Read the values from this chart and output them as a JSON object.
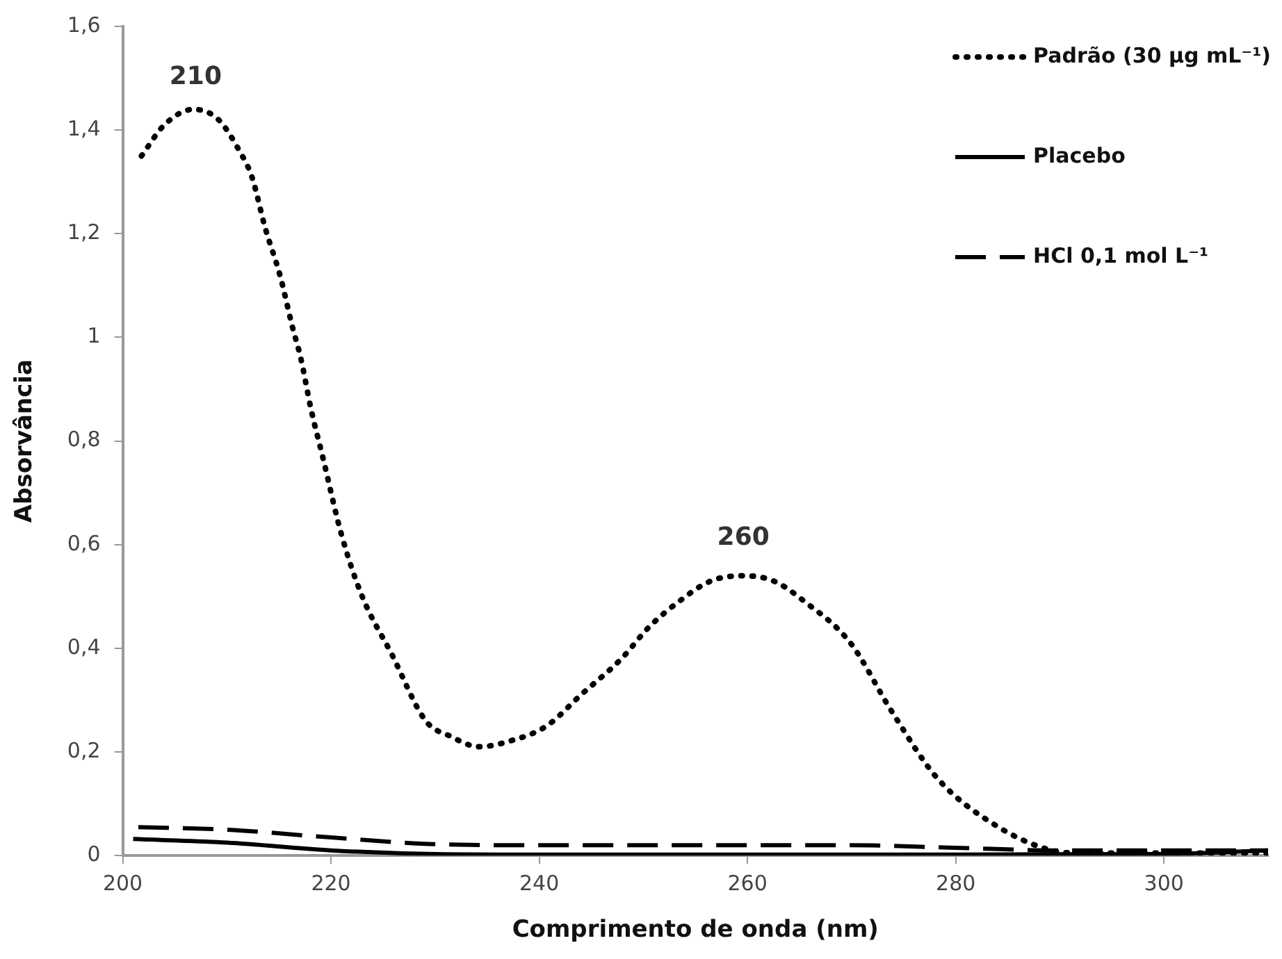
{
  "chart_data": {
    "type": "line",
    "xlabel": "Comprimento de onda (nm)",
    "ylabel": "Absorvância",
    "xlim": [
      200,
      310
    ],
    "xticks": [
      200,
      220,
      240,
      260,
      280,
      300
    ],
    "ylim": [
      0,
      1.6
    ],
    "yticks": [
      0,
      {
        "value": 0.2,
        "label": "0,2"
      },
      {
        "value": 0.4,
        "label": "0,4"
      },
      {
        "value": 0.6,
        "label": "0,6"
      },
      {
        "value": 0.8,
        "label": "0,8"
      },
      1,
      {
        "value": 1.2,
        "label": "1,2"
      },
      {
        "value": 1.4,
        "label": "1,4"
      },
      {
        "value": 1.6,
        "label": "1,6"
      }
    ],
    "grid": false,
    "legend": "top right",
    "marker": "none",
    "annotations": [
      {
        "text": "210",
        "x": 207,
        "y": 1.44
      },
      {
        "text": "260",
        "x": 259.6,
        "y": 0.55
      }
    ],
    "series": [
      {
        "name": "Padrão (30 µg mL⁻¹)",
        "color": "#000000",
        "line_style": "dotted",
        "x": [
          201.8,
          204,
          206.8,
          209.2,
          211.2,
          212.4,
          213.7,
          215.1,
          216.3,
          217.1,
          218.1,
          219.2,
          221,
          223,
          225.8,
          229.1,
          231.5,
          234.2,
          237,
          240.7,
          244,
          247.9,
          250.5,
          253.4,
          256.5,
          259.6,
          262.5,
          265.5,
          269.9,
          273.8,
          278.2,
          283.7,
          289.2,
          292,
          300,
          310
        ],
        "values": [
          1.35,
          1.41,
          1.44,
          1.42,
          1.36,
          1.31,
          1.21,
          1.12,
          1.02,
          0.96,
          0.86,
          0.77,
          0.62,
          0.5,
          0.39,
          0.26,
          0.23,
          0.21,
          0.22,
          0.25,
          0.31,
          0.38,
          0.44,
          0.49,
          0.53,
          0.54,
          0.53,
          0.49,
          0.41,
          0.28,
          0.15,
          0.06,
          0.01,
          0.005,
          0.005,
          0.005
        ]
      },
      {
        "name": "Placebo",
        "color": "#000000",
        "line_style": "solid",
        "x": [
          201,
          210,
          220,
          230,
          240,
          260,
          280,
          300,
          310
        ],
        "values": [
          0.032,
          0.025,
          0.01,
          0.003,
          0.002,
          0.002,
          0.002,
          0.003,
          0.01
        ]
      },
      {
        "name": "HCl 0,1 mol L⁻¹",
        "color": "#000000",
        "line_style": "dashed",
        "x": [
          201.5,
          210,
          220,
          230,
          240,
          270,
          280,
          290,
          310
        ],
        "values": [
          0.055,
          0.05,
          0.035,
          0.022,
          0.02,
          0.02,
          0.015,
          0.01,
          0.01
        ]
      }
    ]
  }
}
